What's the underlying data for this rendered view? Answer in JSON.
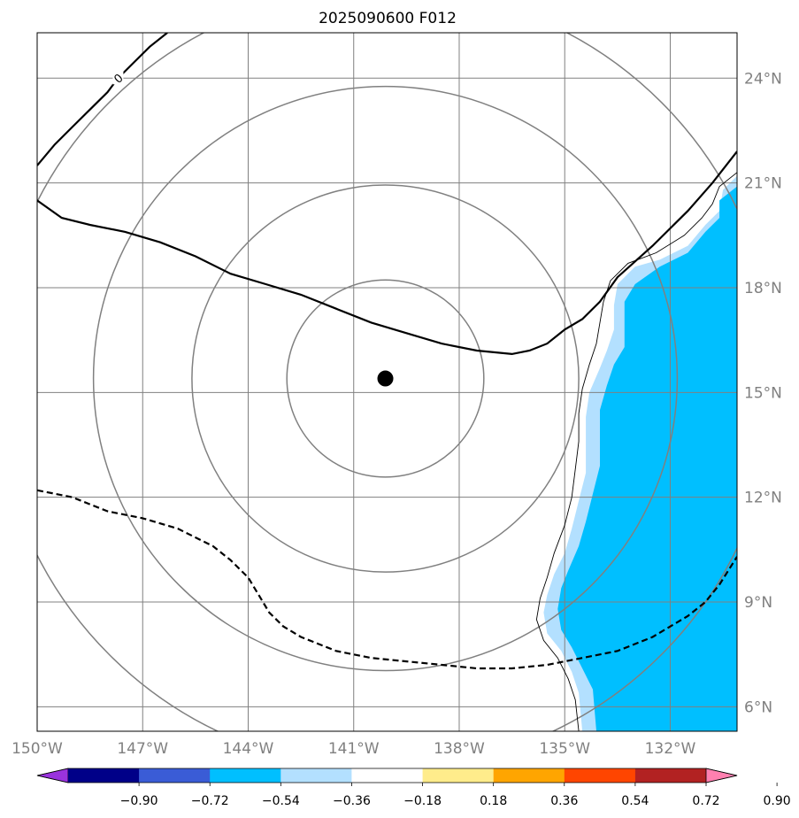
{
  "chart_data": {
    "type": "map",
    "title": "2025090600 F012",
    "lon_range": [
      -150,
      -130.1
    ],
    "lat_range": [
      5.3,
      25.3
    ],
    "lon_ticks": [
      -150,
      -147,
      -144,
      -141,
      -138,
      -135,
      -132
    ],
    "lon_tick_labels": [
      "150°W",
      "147°W",
      "144°W",
      "141°W",
      "138°W",
      "135°W",
      "132°W"
    ],
    "lat_ticks": [
      6,
      9,
      12,
      15,
      18,
      21,
      24
    ],
    "lat_tick_labels": [
      "6°N",
      "9°N",
      "12°N",
      "15°N",
      "18°N",
      "21°N",
      "24°N"
    ],
    "gridlines": true,
    "center": {
      "lon": -140.1,
      "lat": 15.4
    },
    "range_rings_deg_lon": [
      2.8,
      5.5,
      8.3,
      11.1
    ],
    "contour_label": "0",
    "solid_contour_upper": [
      [
        -150,
        21.5
      ],
      [
        -149.5,
        22.1
      ],
      [
        -149,
        22.6
      ],
      [
        -148.5,
        23.1
      ],
      [
        -148,
        23.6
      ],
      [
        -147.7,
        24.0
      ],
      [
        -147.3,
        24.4
      ],
      [
        -146.8,
        24.9
      ],
      [
        -146.3,
        25.3
      ]
    ],
    "solid_contour_main": [
      [
        -150,
        20.5
      ],
      [
        -149.3,
        20.0
      ],
      [
        -148.5,
        19.8
      ],
      [
        -147.5,
        19.6
      ],
      [
        -146.5,
        19.3
      ],
      [
        -145.5,
        18.9
      ],
      [
        -144.5,
        18.4
      ],
      [
        -143.5,
        18.1
      ],
      [
        -142.5,
        17.8
      ],
      [
        -141.5,
        17.4
      ],
      [
        -140.5,
        17.0
      ],
      [
        -139.5,
        16.7
      ],
      [
        -138.5,
        16.4
      ],
      [
        -137.5,
        16.2
      ],
      [
        -136.5,
        16.1
      ],
      [
        -136.0,
        16.2
      ],
      [
        -135.5,
        16.4
      ],
      [
        -135.0,
        16.8
      ],
      [
        -134.5,
        17.1
      ],
      [
        -134.0,
        17.6
      ],
      [
        -133.5,
        18.3
      ],
      [
        -132.5,
        19.2
      ],
      [
        -131.5,
        20.2
      ],
      [
        -130.8,
        21.0
      ],
      [
        -130.1,
        21.9
      ]
    ],
    "dashed_contour": [
      [
        -150,
        12.2
      ],
      [
        -149.5,
        12.1
      ],
      [
        -149,
        12.0
      ],
      [
        -148.5,
        11.8
      ],
      [
        -148,
        11.6
      ],
      [
        -147,
        11.4
      ],
      [
        -146,
        11.1
      ],
      [
        -145,
        10.6
      ],
      [
        -144.5,
        10.2
      ],
      [
        -144,
        9.7
      ],
      [
        -143.7,
        9.2
      ],
      [
        -143.4,
        8.7
      ],
      [
        -143,
        8.3
      ],
      [
        -142.5,
        8.0
      ],
      [
        -141.5,
        7.6
      ],
      [
        -140.5,
        7.4
      ],
      [
        -139.5,
        7.3
      ],
      [
        -138.5,
        7.2
      ],
      [
        -137.5,
        7.1
      ],
      [
        -136.5,
        7.1
      ],
      [
        -135.5,
        7.2
      ],
      [
        -134.5,
        7.4
      ],
      [
        -133.5,
        7.6
      ],
      [
        -132.5,
        8.0
      ],
      [
        -131.5,
        8.6
      ],
      [
        -131.0,
        9.0
      ],
      [
        -130.6,
        9.5
      ],
      [
        -130.1,
        10.3
      ]
    ],
    "shaded_light": [
      [
        -130.1,
        21.2
      ],
      [
        -130.5,
        20.8
      ],
      [
        -130.6,
        20.2
      ],
      [
        -131.0,
        19.8
      ],
      [
        -131.5,
        19.2
      ],
      [
        -132.3,
        18.8
      ],
      [
        -133.0,
        18.6
      ],
      [
        -133.5,
        18.1
      ],
      [
        -133.6,
        17.5
      ],
      [
        -133.6,
        16.8
      ],
      [
        -133.8,
        16.2
      ],
      [
        -134.0,
        15.7
      ],
      [
        -134.3,
        15.0
      ],
      [
        -134.4,
        14.3
      ],
      [
        -134.4,
        13.5
      ],
      [
        -134.4,
        12.7
      ],
      [
        -134.6,
        11.9
      ],
      [
        -134.8,
        11.1
      ],
      [
        -135.0,
        10.4
      ],
      [
        -135.3,
        9.8
      ],
      [
        -135.5,
        9.2
      ],
      [
        -135.6,
        8.7
      ],
      [
        -135.5,
        8.1
      ],
      [
        -135.1,
        7.6
      ],
      [
        -134.8,
        7.0
      ],
      [
        -134.6,
        6.4
      ],
      [
        -134.5,
        5.3
      ],
      [
        -130.1,
        5.3
      ]
    ],
    "shaded_dark": [
      [
        -130.1,
        20.9
      ],
      [
        -130.6,
        20.5
      ],
      [
        -130.6,
        20.0
      ],
      [
        -131.0,
        19.6
      ],
      [
        -131.5,
        19.0
      ],
      [
        -132.3,
        18.6
      ],
      [
        -133.0,
        18.1
      ],
      [
        -133.3,
        17.6
      ],
      [
        -133.3,
        17.0
      ],
      [
        -133.3,
        16.3
      ],
      [
        -133.6,
        15.8
      ],
      [
        -133.8,
        15.2
      ],
      [
        -134.0,
        14.5
      ],
      [
        -134.0,
        13.7
      ],
      [
        -134.0,
        12.9
      ],
      [
        -134.2,
        12.1
      ],
      [
        -134.4,
        11.3
      ],
      [
        -134.6,
        10.6
      ],
      [
        -134.9,
        9.9
      ],
      [
        -135.1,
        9.4
      ],
      [
        -135.2,
        8.8
      ],
      [
        -135.1,
        8.2
      ],
      [
        -134.8,
        7.7
      ],
      [
        -134.5,
        7.1
      ],
      [
        -134.2,
        6.5
      ],
      [
        -134.1,
        5.3
      ],
      [
        -130.1,
        5.3
      ]
    ],
    "outline_contour": [
      [
        -130.1,
        21.3
      ],
      [
        -130.6,
        20.9
      ],
      [
        -130.8,
        20.4
      ],
      [
        -131.1,
        20.0
      ],
      [
        -131.6,
        19.5
      ],
      [
        -132.4,
        19.0
      ],
      [
        -133.2,
        18.7
      ],
      [
        -133.7,
        18.2
      ],
      [
        -133.9,
        17.6
      ],
      [
        -134.0,
        17.0
      ],
      [
        -134.1,
        16.4
      ],
      [
        -134.3,
        15.8
      ],
      [
        -134.5,
        15.1
      ],
      [
        -134.6,
        14.4
      ],
      [
        -134.6,
        13.6
      ],
      [
        -134.7,
        12.8
      ],
      [
        -134.8,
        12.0
      ],
      [
        -135.0,
        11.2
      ],
      [
        -135.3,
        10.4
      ],
      [
        -135.5,
        9.7
      ],
      [
        -135.7,
        9.1
      ],
      [
        -135.8,
        8.5
      ],
      [
        -135.6,
        7.9
      ],
      [
        -135.2,
        7.4
      ],
      [
        -134.9,
        6.8
      ],
      [
        -134.7,
        6.2
      ],
      [
        -134.6,
        5.3
      ]
    ],
    "colorbar": {
      "colors": [
        "#9933dd",
        "#000088",
        "#3a5cd6",
        "#00bfff",
        "#b3e0ff",
        "#ffffff",
        "#ffec8b",
        "#ffa500",
        "#ff4500",
        "#b22222",
        "#ff80b0"
      ],
      "boundaries": [
        "−0.90",
        "−0.72",
        "−0.54",
        "−0.36",
        "−0.18",
        "0.18",
        "0.36",
        "0.54",
        "0.72",
        "0.90"
      ],
      "extend": "both"
    },
    "accent_colors": {
      "shade_dark": "#00bfff",
      "shade_light": "#b3e0ff",
      "grid": "#808080",
      "center_marker": "#000000"
    }
  }
}
